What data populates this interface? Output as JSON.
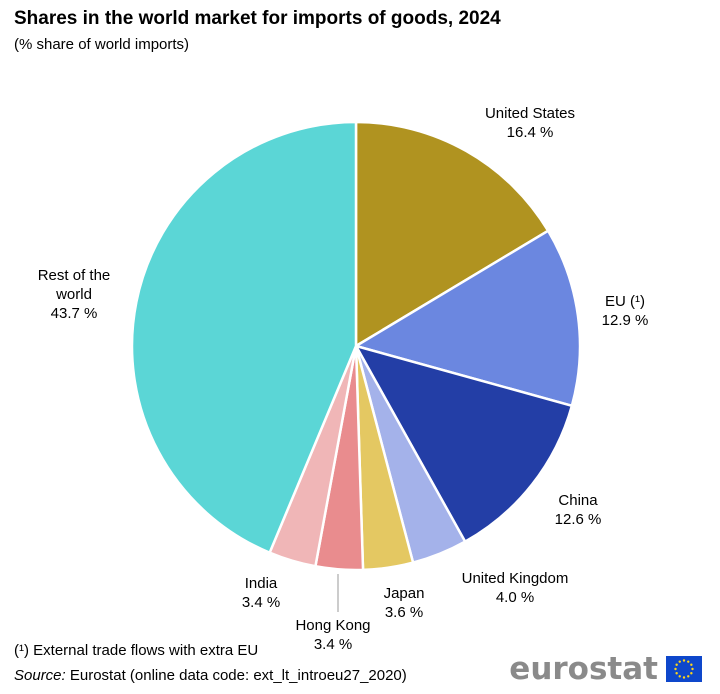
{
  "title": "Shares in the world market for imports of goods, 2024",
  "subtitle": "(% share of world imports)",
  "footnote": "(¹) External trade flows with extra EU",
  "source": {
    "label": "Source:",
    "text": " Eurostat (online data code: ext_lt_introeu27_2020)"
  },
  "logo": {
    "text": "eurostat",
    "flag_icon": "eu-flag-icon"
  },
  "chart_data": {
    "type": "pie",
    "title": "Shares in the world market for imports of goods, 2024",
    "subtitle": "(% share of world imports)",
    "unit": "%",
    "slices": [
      {
        "label": "United States",
        "value": 16.4,
        "value_label": "16.4 %",
        "color": "#b09320"
      },
      {
        "label": "EU (¹)",
        "value": 12.9,
        "value_label": "12.9 %",
        "color": "#6b87e0"
      },
      {
        "label": "China",
        "value": 12.6,
        "value_label": "12.6 %",
        "color": "#233ea6"
      },
      {
        "label": "United Kingdom",
        "value": 4.0,
        "value_label": "4.0 %",
        "color": "#a4b2ea"
      },
      {
        "label": "Japan",
        "value": 3.6,
        "value_label": "3.6 %",
        "color": "#e4c862"
      },
      {
        "label": "Hong Kong",
        "value": 3.4,
        "value_label": "3.4 %",
        "color": "#e98c8e"
      },
      {
        "label": "India",
        "value": 3.4,
        "value_label": "3.4 %",
        "color": "#f0b6b7"
      },
      {
        "label": "Rest of the world",
        "label_lines": [
          "Rest of the",
          "world"
        ],
        "value": 43.7,
        "value_label": "43.7 %",
        "color": "#5bd6d6"
      }
    ]
  }
}
